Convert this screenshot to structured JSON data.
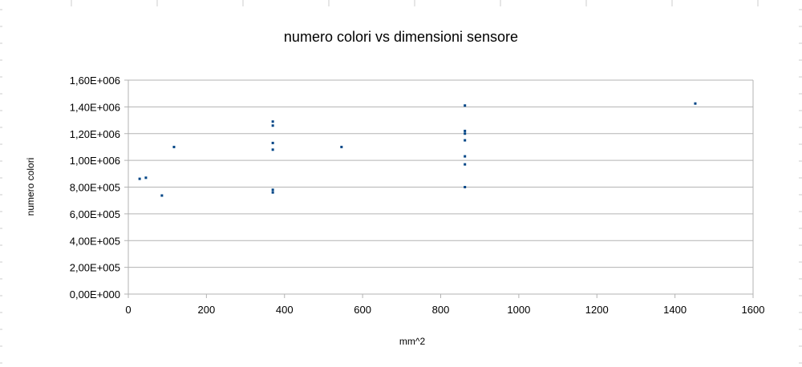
{
  "chart_data": {
    "type": "scatter",
    "title": "numero colori vs dimensioni sensore",
    "xlabel": "mm^2",
    "ylabel": "numero colori",
    "xlim": [
      0,
      1600
    ],
    "ylim": [
      0,
      1600000
    ],
    "x_ticks": [
      "0",
      "200",
      "400",
      "600",
      "800",
      "1000",
      "1200",
      "1400",
      "1600"
    ],
    "y_ticks": [
      "0,00E+000",
      "2,00E+005",
      "4,00E+005",
      "6,00E+005",
      "8,00E+005",
      "1,00E+006",
      "1,20E+006",
      "1,40E+006",
      "1,60E+006"
    ],
    "grid": "horizontal",
    "legend": "none",
    "marker_color": "#004586",
    "points": [
      {
        "x": 29,
        "y": 862000
      },
      {
        "x": 45,
        "y": 870000
      },
      {
        "x": 86,
        "y": 737000
      },
      {
        "x": 117,
        "y": 1100000
      },
      {
        "x": 370,
        "y": 1290000
      },
      {
        "x": 370,
        "y": 1260000
      },
      {
        "x": 370,
        "y": 1130000
      },
      {
        "x": 370,
        "y": 1080000
      },
      {
        "x": 370,
        "y": 780000
      },
      {
        "x": 370,
        "y": 760000
      },
      {
        "x": 546,
        "y": 1100000
      },
      {
        "x": 862,
        "y": 1410000
      },
      {
        "x": 862,
        "y": 1220000
      },
      {
        "x": 862,
        "y": 1200000
      },
      {
        "x": 862,
        "y": 1150000
      },
      {
        "x": 862,
        "y": 1030000
      },
      {
        "x": 862,
        "y": 970000
      },
      {
        "x": 862,
        "y": 800000
      },
      {
        "x": 1452,
        "y": 1425000
      }
    ]
  }
}
